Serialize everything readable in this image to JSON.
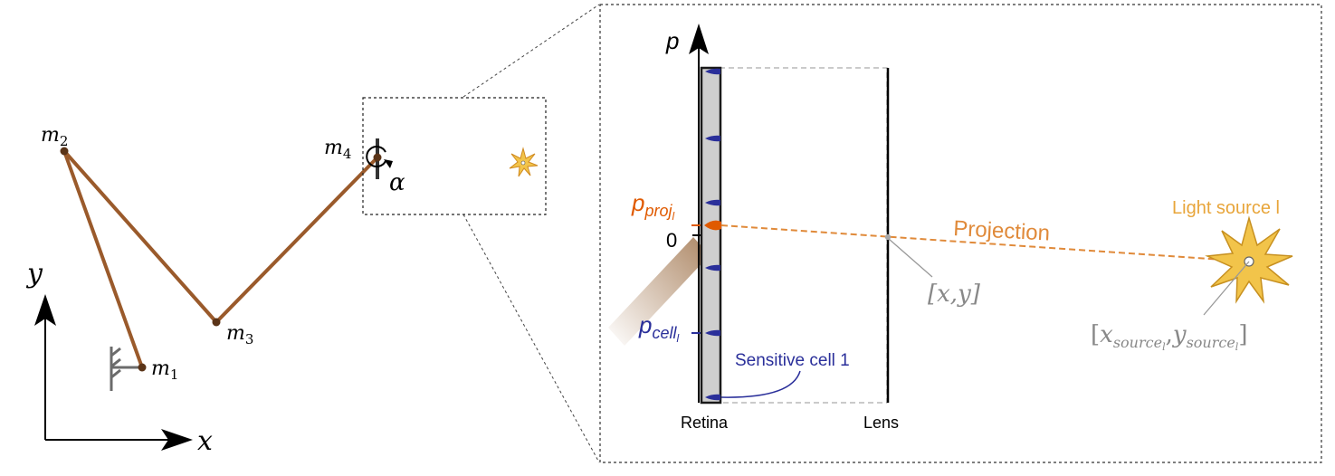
{
  "arm": {
    "m1": "m",
    "m1_sub": "1",
    "m2": "m",
    "m2_sub": "2",
    "m3": "m",
    "m3_sub": "3",
    "m4": "m",
    "m4_sub": "4",
    "alpha": "α",
    "axis_x": "x",
    "axis_y": "y"
  },
  "zoom": {
    "axis_p": "p",
    "zero": "0",
    "p_proj": "p",
    "p_proj_sub": "proj",
    "p_proj_sub2": "l",
    "p_cell": "p",
    "p_cell_sub": "cell",
    "p_cell_sub2": "l",
    "retina_label": "Retina",
    "lens_label": "Lens",
    "projection_label": "Projection",
    "light_source_label": "Light source l",
    "sensitive_cell_label": "Sensitive cell 1",
    "lens_point": "[x,y]",
    "source_point_open": "[",
    "source_x": "x",
    "source_x_sub": "source",
    "source_x_sub2": "l",
    "comma": ",",
    "source_y": "y",
    "source_y_sub": "source",
    "source_y_sub2": "l",
    "source_point_close": "]"
  },
  "colors": {
    "arm": "#9a5a2b",
    "joint": "#5a3418",
    "orange": "#e05a00",
    "projection": "#e08a3a",
    "blue": "#2a2f9a",
    "star": "#f2c44a",
    "gray": "#888888"
  }
}
